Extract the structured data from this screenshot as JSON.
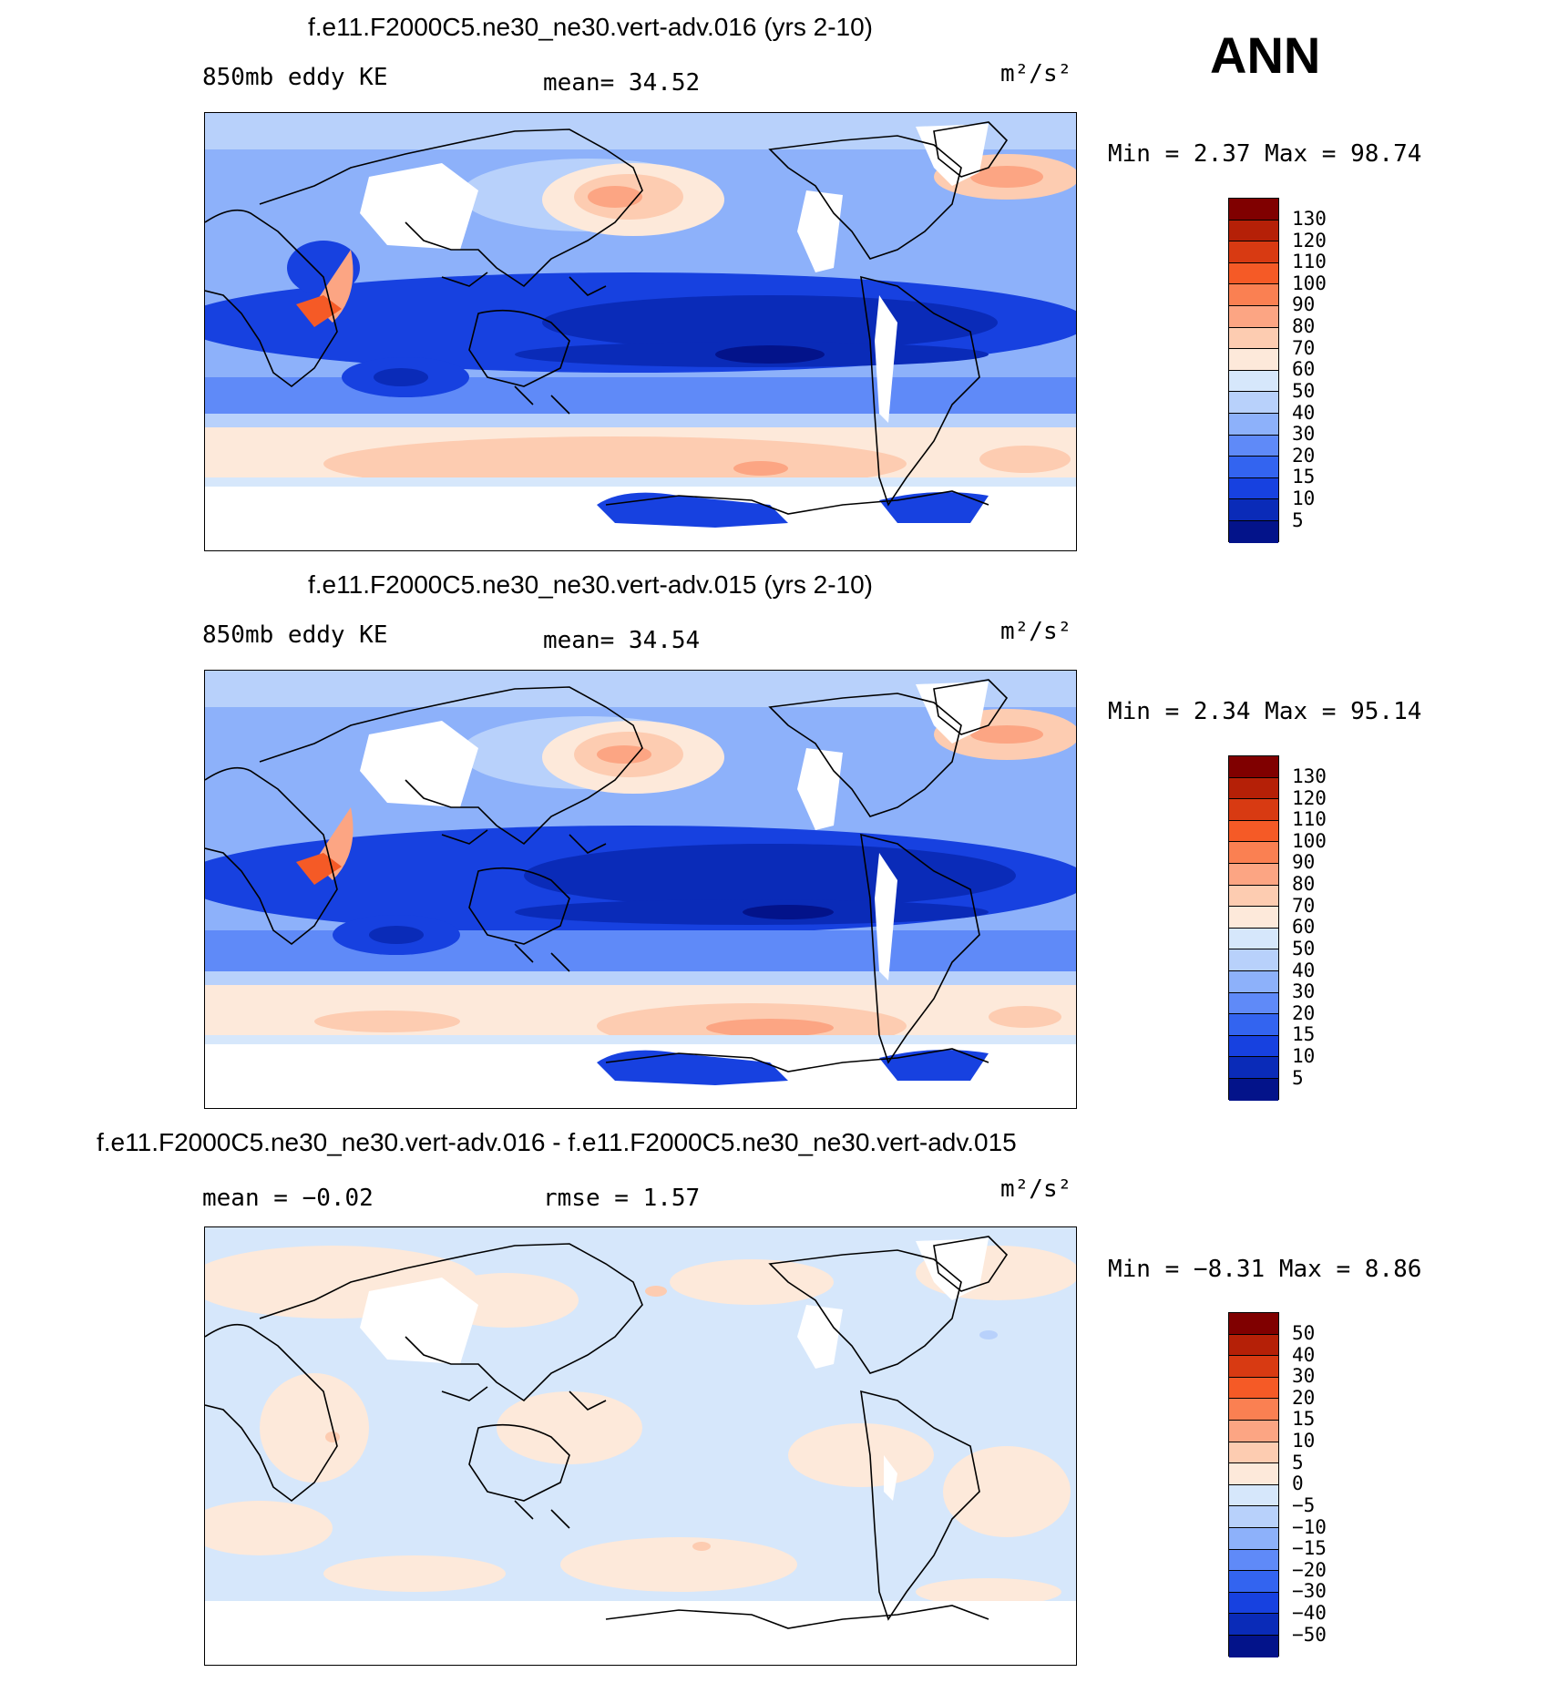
{
  "season": "ANN",
  "panels": [
    {
      "title": "f.e11.F2000C5.ne30_ne30.vert-adv.016 (yrs 2-10)",
      "left_label": "850mb eddy KE",
      "center_label": "mean=   34.52",
      "units": "m²/s²",
      "minmax": "Min =    2.37 Max =   98.74",
      "colorbar_labels": [
        "130",
        "120",
        "110",
        "100",
        "90",
        "80",
        "70",
        "60",
        "50",
        "40",
        "30",
        "20",
        "15",
        "10",
        "5"
      ]
    },
    {
      "title": "f.e11.F2000C5.ne30_ne30.vert-adv.015 (yrs 2-10)",
      "left_label": "850mb eddy KE",
      "center_label": "mean=   34.54",
      "units": "m²/s²",
      "minmax": "Min =    2.34 Max =   95.14",
      "colorbar_labels": [
        "130",
        "120",
        "110",
        "100",
        "90",
        "80",
        "70",
        "60",
        "50",
        "40",
        "30",
        "20",
        "15",
        "10",
        "5"
      ]
    },
    {
      "title": "f.e11.F2000C5.ne30_ne30.vert-adv.016 - f.e11.F2000C5.ne30_ne30.vert-adv.015",
      "left_label": "mean =   −0.02",
      "center_label": "rmse =    1.57",
      "units": "m²/s²",
      "minmax": "Min =  −8.31 Max =    8.86",
      "colorbar_labels": [
        "50",
        "40",
        "30",
        "20",
        "15",
        "10",
        "5",
        "0",
        "−5",
        "−10",
        "−15",
        "−20",
        "−30",
        "−40",
        "−50"
      ]
    }
  ],
  "colors": {
    "abs_scale": [
      "#800000",
      "#b52007",
      "#d83a12",
      "#f55a26",
      "#fa8052",
      "#fca583",
      "#fdccb1",
      "#fde9da",
      "#d6e7fb",
      "#b8d1fb",
      "#8db1fa",
      "#5f8af8",
      "#3364f0",
      "#1741e0",
      "#0a2bb8",
      "#03138a"
    ],
    "diff_scale": [
      "#800000",
      "#b52007",
      "#d83a12",
      "#f55a26",
      "#fa8052",
      "#fca583",
      "#fdccb1",
      "#fde9da",
      "#d6e7fb",
      "#b8d1fb",
      "#8db1fa",
      "#5f8af8",
      "#3364f0",
      "#1741e0",
      "#0a2bb8",
      "#03138a"
    ]
  }
}
